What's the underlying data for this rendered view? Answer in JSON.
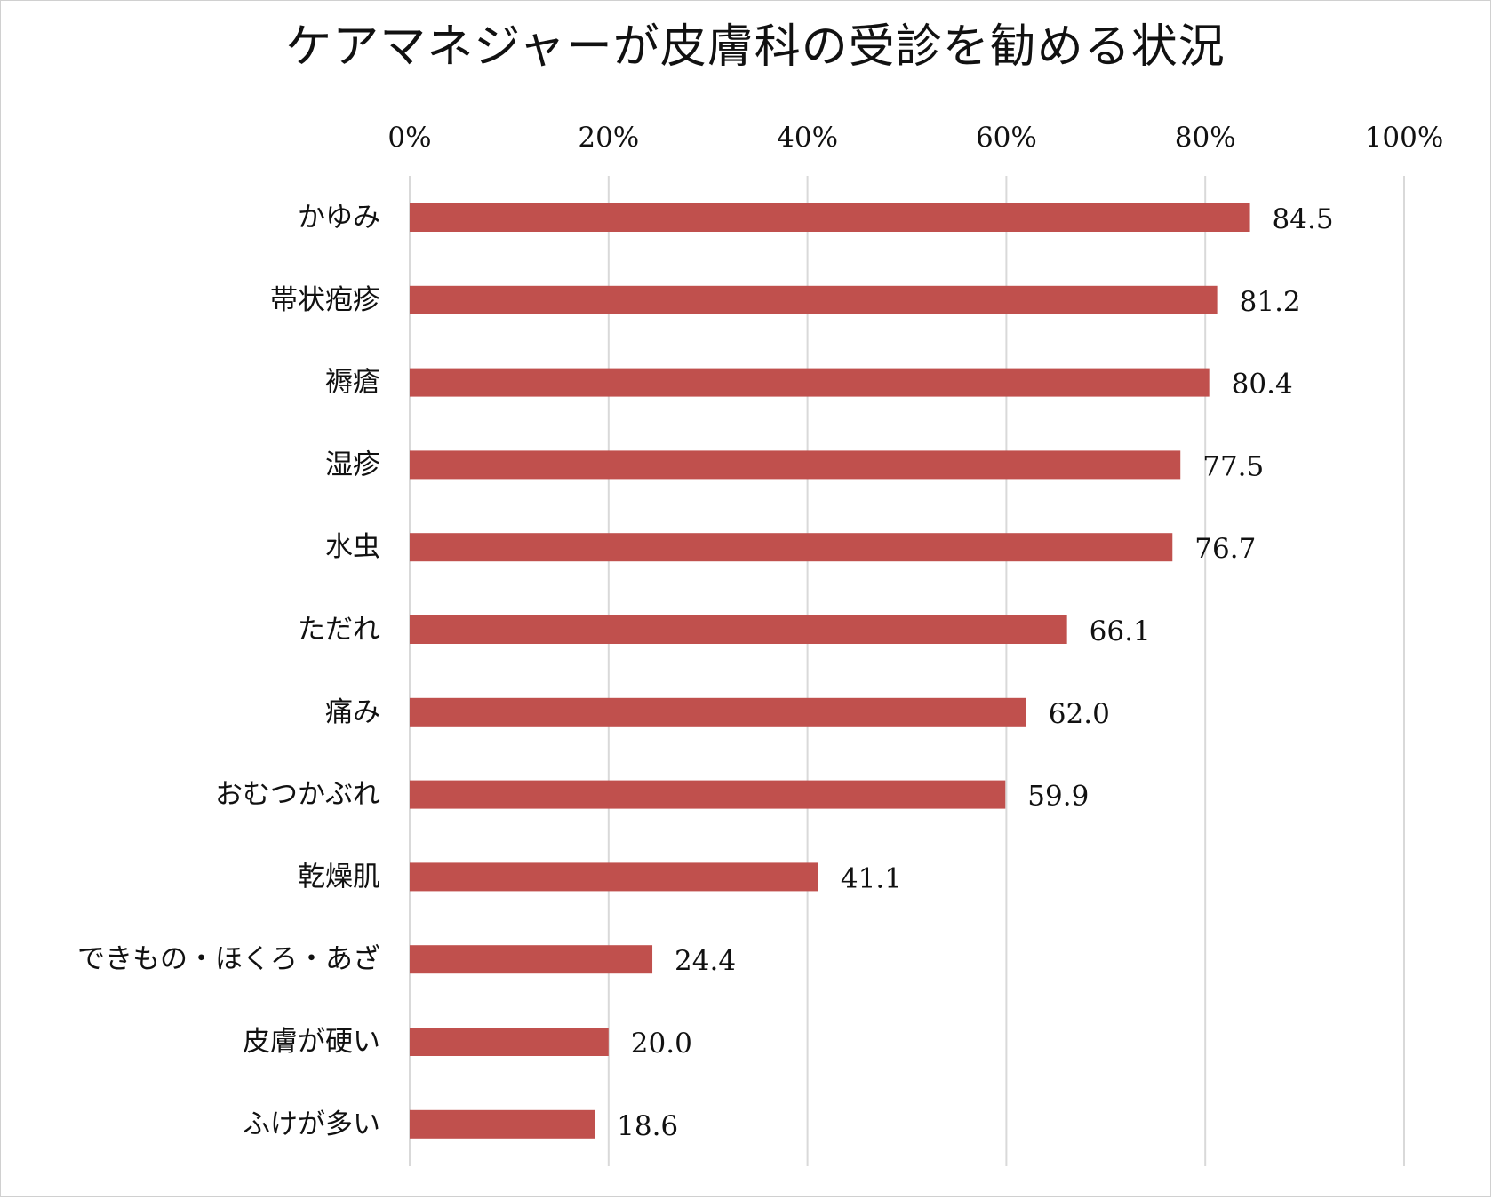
{
  "chart_data": {
    "type": "bar",
    "orientation": "horizontal",
    "title": "ケアマネジャーが皮膚科の受診を勧める状況",
    "xlabel": "",
    "ylabel": "",
    "xlim": [
      0,
      100
    ],
    "ticks": [
      0,
      20,
      40,
      60,
      80,
      100
    ],
    "tick_labels": [
      "0%",
      "20%",
      "40%",
      "60%",
      "80%",
      "100%"
    ],
    "categories": [
      "かゆみ",
      "帯状疱疹",
      "褥瘡",
      "湿疹",
      "水虫",
      "ただれ",
      "痛み",
      "おむつかぶれ",
      "乾燥肌",
      "できもの・ほくろ・あざ",
      "皮膚が硬い",
      "ふけが多い"
    ],
    "values": [
      84.5,
      81.2,
      80.4,
      77.5,
      76.7,
      66.1,
      62.0,
      59.9,
      41.1,
      24.4,
      20.0,
      18.6
    ],
    "value_labels": [
      "84.5",
      "81.2",
      "80.4",
      "77.5",
      "76.7",
      "66.1",
      "62.0",
      "59.9",
      "41.1",
      "24.4",
      "20.0",
      "18.6"
    ],
    "grid": true,
    "bar_color": "#c0504d",
    "grid_color": "#d9d9d9"
  }
}
